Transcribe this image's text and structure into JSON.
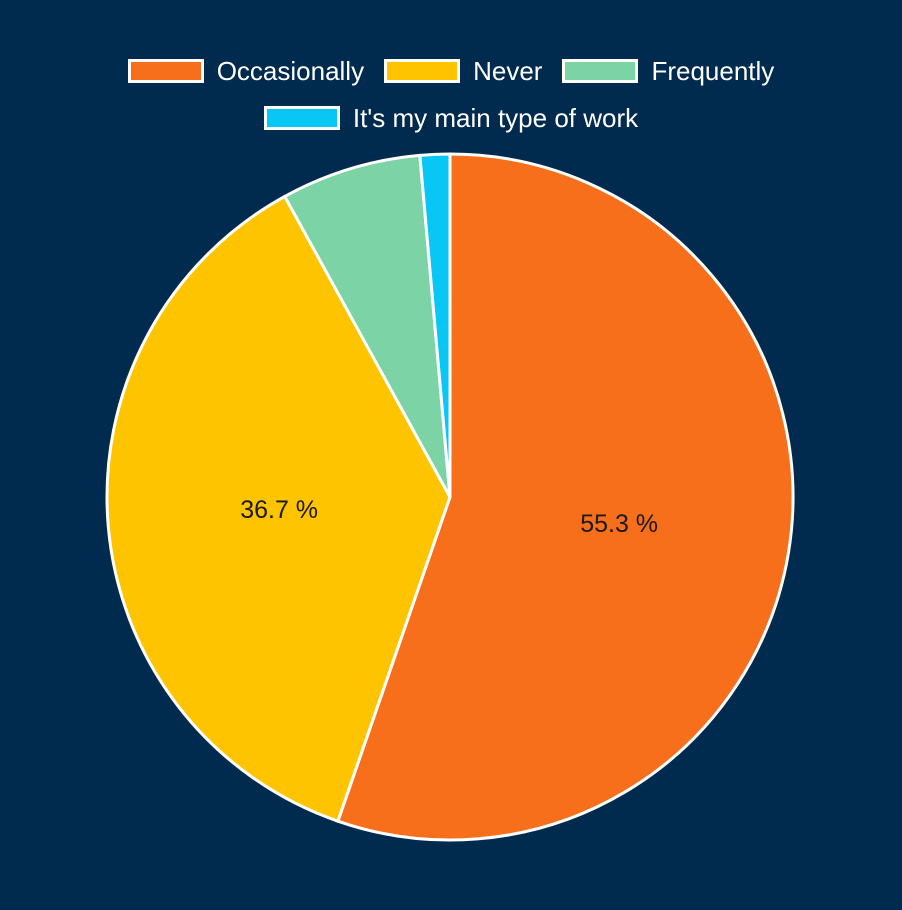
{
  "chart_data": {
    "type": "pie",
    "categories": [
      "Occasionally",
      "Never",
      "Frequently",
      "It's my main type of work"
    ],
    "values": [
      55.3,
      36.7,
      6.6,
      1.4
    ],
    "value_labels": [
      "55.3 %",
      "36.7 %",
      "",
      ""
    ],
    "colors": [
      "#f76f1a",
      "#ffc400",
      "#7bd3a6",
      "#09c7f4"
    ],
    "legend_position": "top",
    "slice_border_color": "#ffffff",
    "background_color": "#002b4f"
  }
}
